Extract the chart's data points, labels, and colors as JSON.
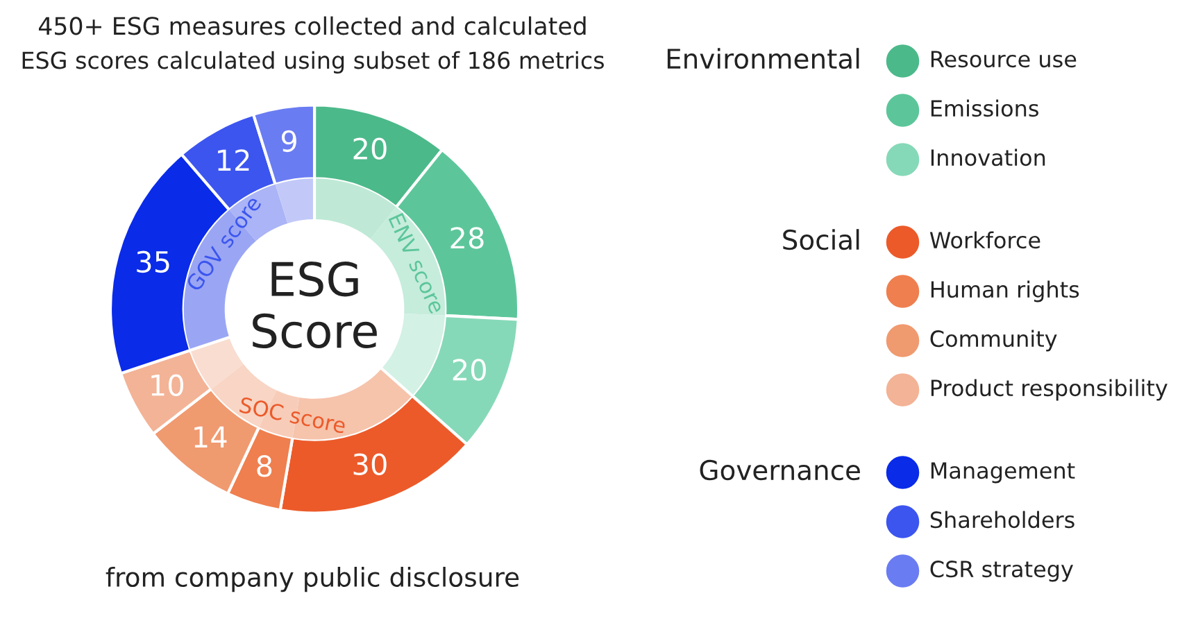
{
  "chart_data": {
    "type": "donut",
    "categories": [
      "Resource use",
      "Emissions",
      "Innovation",
      "Workforce",
      "Human rights",
      "Community",
      "Product responsibility",
      "Management",
      "Shareholders",
      "CSR strategy"
    ],
    "series": [
      {
        "values": [
          20,
          28,
          20,
          30,
          8,
          14,
          10,
          35,
          12,
          9
        ],
        "colors": [
          "#4cb98a",
          "#5cc69a",
          "#86d9b8",
          "#ec5a2a",
          "#ef7f4f",
          "#f09a70",
          "#f3b396",
          "#0a2be8",
          "#3c55ef",
          "#6a7cf2"
        ],
        "data_labels": true
      },
      {
        "values": [
          10.75,
          15.05,
          10.75,
          16.13,
          4.3,
          7.53,
          5.38,
          18.82,
          6.45,
          4.84
        ],
        "colors": [
          "#bfe9d6",
          "#c6ecdc",
          "#d3f1e5",
          "#f6c3ab",
          "#f7cdb9",
          "#f8d5c4",
          "#f9ddd0",
          "#9aa6f4",
          "#aab4f6",
          "#c2c9f8"
        ]
      }
    ],
    "legend": "right",
    "annotations": [
      "450+ ESG measures collected and calculated",
      "ESG scores calculated using subset of 186 metrics",
      "from company public disclosure",
      "ESG\nScore",
      "ENV score",
      "SOC score",
      "GOV score",
      "Environmental",
      "Social",
      "Governance"
    ]
  }
}
